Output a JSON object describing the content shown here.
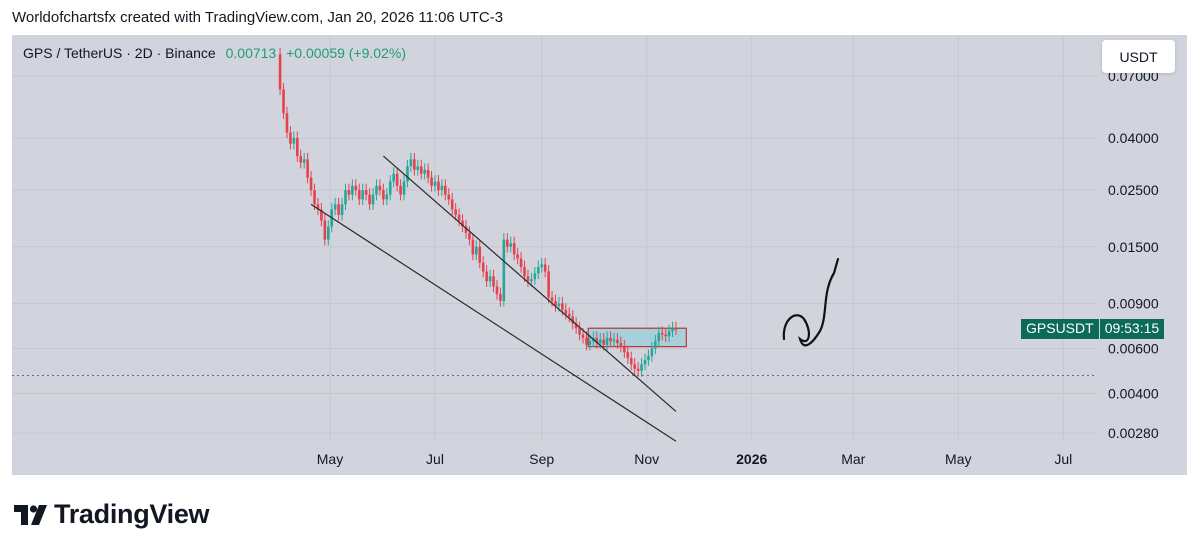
{
  "caption": "Worldofchartsfx created with TradingView.com, Jan 20, 2026 11:06 UTC-3",
  "legend": {
    "symbol": "GPS / TetherUS · 2D · Binance",
    "price": "0.00713",
    "change": "+0.00059 (+9.02%)"
  },
  "currency": "USDT",
  "price_tag": {
    "symbol": "GPSUSDT",
    "countdown": "09:53:15"
  },
  "brand": "TradingView",
  "icons": [
    "tradingview-logo-icon"
  ],
  "colors": {
    "up": "#26a69a",
    "down": "#e5424d",
    "background": "#d1d4dc",
    "zone_fill": "#a9cfdb",
    "zone_border": "#b03a3a",
    "channel": "#2a2a2a",
    "drawing": "#111111",
    "tag": "#0b6b58"
  },
  "chart_data": {
    "type": "candlestick",
    "scale": "log",
    "x_ticks": [
      "May",
      "Jul",
      "Sep",
      "Nov",
      "2026",
      "Mar",
      "May",
      "Jul"
    ],
    "y_ticks": [
      "0.07000",
      "0.04000",
      "0.02500",
      "0.01500",
      "0.00900",
      "0.00600",
      "0.00400",
      "0.00280"
    ],
    "ylim": [
      0.0024,
      0.085
    ],
    "last_price": 0.00713,
    "reference_line": 0.0047,
    "close_series": [
      [
        "2025-03-31",
        0.085
      ],
      [
        "2025-04-02",
        0.062
      ],
      [
        "2025-04-04",
        0.05
      ],
      [
        "2025-04-06",
        0.042
      ],
      [
        "2025-04-08",
        0.038
      ],
      [
        "2025-04-10",
        0.04
      ],
      [
        "2025-04-12",
        0.034
      ],
      [
        "2025-04-14",
        0.032
      ],
      [
        "2025-04-16",
        0.033
      ],
      [
        "2025-04-18",
        0.028
      ],
      [
        "2025-04-20",
        0.025
      ],
      [
        "2025-04-22",
        0.022
      ],
      [
        "2025-04-24",
        0.021
      ],
      [
        "2025-04-26",
        0.019
      ],
      [
        "2025-04-28",
        0.016
      ],
      [
        "2025-04-30",
        0.018
      ],
      [
        "2025-05-02",
        0.021
      ],
      [
        "2025-05-04",
        0.022
      ],
      [
        "2025-05-06",
        0.02
      ],
      [
        "2025-05-08",
        0.022
      ],
      [
        "2025-05-10",
        0.025
      ],
      [
        "2025-05-12",
        0.024
      ],
      [
        "2025-05-14",
        0.026
      ],
      [
        "2025-05-16",
        0.025
      ],
      [
        "2025-05-18",
        0.023
      ],
      [
        "2025-05-20",
        0.025
      ],
      [
        "2025-05-22",
        0.024
      ],
      [
        "2025-05-24",
        0.022
      ],
      [
        "2025-05-26",
        0.024
      ],
      [
        "2025-05-28",
        0.026
      ],
      [
        "2025-05-30",
        0.025
      ],
      [
        "2025-06-01",
        0.023
      ],
      [
        "2025-06-03",
        0.024
      ],
      [
        "2025-06-05",
        0.027
      ],
      [
        "2025-06-07",
        0.029
      ],
      [
        "2025-06-09",
        0.026
      ],
      [
        "2025-06-11",
        0.024
      ],
      [
        "2025-06-13",
        0.027
      ],
      [
        "2025-06-15",
        0.031
      ],
      [
        "2025-06-17",
        0.033
      ],
      [
        "2025-06-19",
        0.03
      ],
      [
        "2025-06-21",
        0.031
      ],
      [
        "2025-06-23",
        0.029
      ],
      [
        "2025-06-25",
        0.03
      ],
      [
        "2025-06-27",
        0.028
      ],
      [
        "2025-06-29",
        0.026
      ],
      [
        "2025-07-01",
        0.027
      ],
      [
        "2025-07-03",
        0.025
      ],
      [
        "2025-07-05",
        0.026
      ],
      [
        "2025-07-07",
        0.024
      ],
      [
        "2025-07-09",
        0.023
      ],
      [
        "2025-07-11",
        0.021
      ],
      [
        "2025-07-13",
        0.02
      ],
      [
        "2025-07-15",
        0.019
      ],
      [
        "2025-07-17",
        0.018
      ],
      [
        "2025-07-19",
        0.017
      ],
      [
        "2025-07-21",
        0.016
      ],
      [
        "2025-07-23",
        0.014
      ],
      [
        "2025-07-25",
        0.015
      ],
      [
        "2025-07-27",
        0.013
      ],
      [
        "2025-07-29",
        0.012
      ],
      [
        "2025-07-31",
        0.011
      ],
      [
        "2025-08-02",
        0.0115
      ],
      [
        "2025-08-04",
        0.0105
      ],
      [
        "2025-08-06",
        0.0098
      ],
      [
        "2025-08-08",
        0.0092
      ],
      [
        "2025-08-10",
        0.016
      ],
      [
        "2025-08-12",
        0.015
      ],
      [
        "2025-08-14",
        0.0155
      ],
      [
        "2025-08-16",
        0.014
      ],
      [
        "2025-08-18",
        0.0135
      ],
      [
        "2025-08-20",
        0.0125
      ],
      [
        "2025-08-22",
        0.0115
      ],
      [
        "2025-08-24",
        0.011
      ],
      [
        "2025-08-26",
        0.0112
      ],
      [
        "2025-08-28",
        0.0118
      ],
      [
        "2025-08-30",
        0.0125
      ],
      [
        "2025-09-01",
        0.0128
      ],
      [
        "2025-09-03",
        0.012
      ],
      [
        "2025-09-05",
        0.0095
      ],
      [
        "2025-09-07",
        0.0092
      ],
      [
        "2025-09-09",
        0.0088
      ],
      [
        "2025-09-11",
        0.009
      ],
      [
        "2025-09-13",
        0.0085
      ],
      [
        "2025-09-15",
        0.0082
      ],
      [
        "2025-09-17",
        0.008
      ],
      [
        "2025-09-19",
        0.0075
      ],
      [
        "2025-09-21",
        0.0072
      ],
      [
        "2025-09-23",
        0.0068
      ],
      [
        "2025-09-25",
        0.0066
      ],
      [
        "2025-09-27",
        0.0062
      ],
      [
        "2025-09-29",
        0.0064
      ],
      [
        "2025-10-01",
        0.0066
      ],
      [
        "2025-10-03",
        0.0063
      ],
      [
        "2025-10-05",
        0.0065
      ],
      [
        "2025-10-07",
        0.0062
      ],
      [
        "2025-10-09",
        0.0066
      ],
      [
        "2025-10-11",
        0.0064
      ],
      [
        "2025-10-13",
        0.0065
      ],
      [
        "2025-10-15",
        0.0063
      ],
      [
        "2025-10-17",
        0.0061
      ],
      [
        "2025-10-19",
        0.0058
      ],
      [
        "2025-10-21",
        0.0055
      ],
      [
        "2025-10-23",
        0.0052
      ],
      [
        "2025-10-25",
        0.005
      ],
      [
        "2025-10-27",
        0.0049
      ],
      [
        "2025-10-29",
        0.0052
      ],
      [
        "2025-10-31",
        0.0054
      ],
      [
        "2025-11-02",
        0.0056
      ],
      [
        "2025-11-04",
        0.006
      ],
      [
        "2025-11-06",
        0.0064
      ],
      [
        "2025-11-08",
        0.0069
      ],
      [
        "2025-11-10",
        0.0068
      ],
      [
        "2025-11-12",
        0.0067
      ],
      [
        "2025-11-14",
        0.007
      ],
      [
        "2025-11-16",
        0.0072
      ],
      [
        "2025-11-18",
        0.00713
      ]
    ],
    "channel_upper": [
      [
        "2025-06-01",
        0.034
      ],
      [
        "2025-11-18",
        0.0034
      ]
    ],
    "channel_lower": [
      [
        "2025-04-20",
        0.022
      ],
      [
        "2025-11-18",
        0.0026
      ]
    ],
    "zone": {
      "x": [
        "2025-09-28",
        "2025-11-24"
      ],
      "y": [
        0.0061,
        0.0072
      ]
    }
  }
}
